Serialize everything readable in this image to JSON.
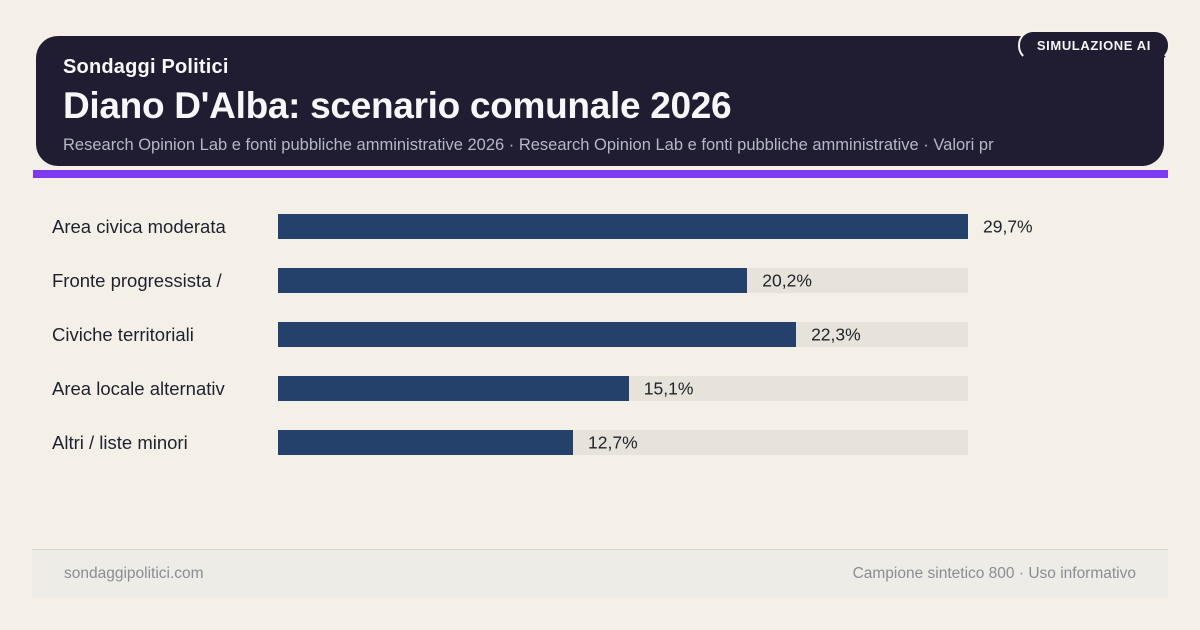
{
  "badge": {
    "label": "SIMULAZIONE AI"
  },
  "header": {
    "kicker": "Sondaggi Politici",
    "title": "Diano D'Alba: scenario comunale 2026",
    "subtitle": "Research Opinion Lab e fonti pubbliche amministrative 2026 · Research Opinion Lab e fonti pubbliche amministrative · Valori pr"
  },
  "chart_data": {
    "type": "bar",
    "orientation": "horizontal",
    "title": "Diano D'Alba: scenario comunale 2026",
    "categories": [
      "Area civica moderata",
      "Fronte progressista /",
      "Civiche territoriali",
      "Area locale alternativ",
      "Altri / liste minori"
    ],
    "values": [
      29.7,
      20.2,
      22.3,
      15.1,
      12.7
    ],
    "value_labels": [
      "29,7%",
      "20,2%",
      "22,3%",
      "15,1%",
      "12,7%"
    ],
    "xlim": [
      0,
      29.7
    ],
    "grid": false,
    "legend": false,
    "bar_color": "#24416b",
    "track_color": "#e7e3da"
  },
  "footer": {
    "left": "sondaggipolitici.com",
    "right": "Campione sintetico 800 · Uso informativo"
  },
  "colors": {
    "accent": "#7d3bf0",
    "card_bg": "#201d32",
    "page_bg": "#f5f0e7"
  }
}
